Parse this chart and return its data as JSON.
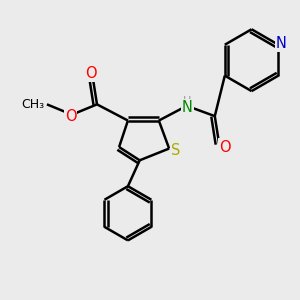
{
  "bg_color": "#ebebeb",
  "bond_color": "#000000",
  "bond_width": 1.8,
  "atom_colors": {
    "N_pyridine": "#0000cc",
    "N_amide": "#008800",
    "O": "#ff0000",
    "S": "#aaaa00",
    "C": "#000000"
  },
  "figsize": [
    3.0,
    3.0
  ],
  "dpi": 100,
  "xlim": [
    0,
    10
  ],
  "ylim": [
    0,
    10
  ]
}
